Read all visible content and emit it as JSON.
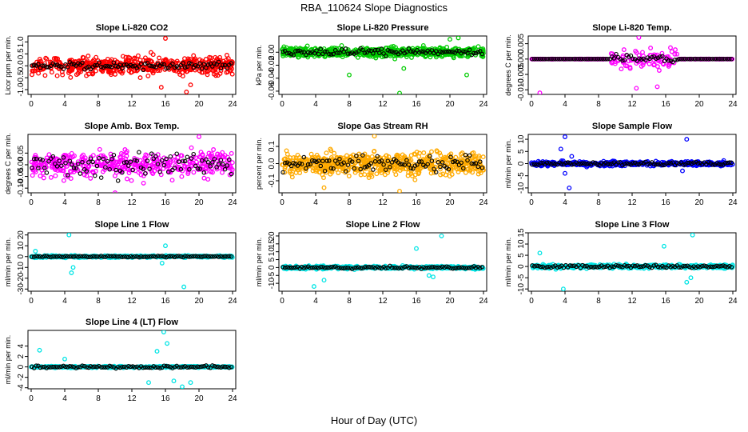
{
  "title": "RBA_110624  Slope Diagnostics",
  "xlabel": "Hour of Day (UTC)",
  "chart_data": [
    {
      "type": "scatter",
      "title": "Slope Li-820 CO2",
      "ylabel": "Licor ppm per min.",
      "xlim": [
        0,
        24
      ],
      "xticks": [
        0,
        4,
        8,
        12,
        16,
        20,
        24
      ],
      "ylim": [
        -1.2,
        1.25
      ],
      "yticks": [
        -1.0,
        -0.5,
        0.0,
        0.5,
        1.0
      ],
      "ytick_labels": [
        "-1.0",
        "-0.5",
        "0.0",
        "0.5",
        "1.0"
      ],
      "color": "#ff0000",
      "seed": 11,
      "spread": 0.32,
      "n": 520,
      "outliers": [
        [
          16,
          1.15
        ],
        [
          18.5,
          -1.1
        ],
        [
          19,
          -0.8
        ],
        [
          15.5,
          -0.9
        ],
        [
          13,
          -0.5
        ]
      ],
      "black_spread": 0.12
    },
    {
      "type": "scatter",
      "title": "Slope Li-820 Pressure",
      "ylabel": "kPa per min.",
      "xlim": [
        0,
        24
      ],
      "xticks": [
        0,
        4,
        8,
        12,
        16,
        20,
        24
      ],
      "ylim": [
        -0.065,
        0.025
      ],
      "yticks": [
        -0.06,
        -0.04,
        -0.02,
        0.0
      ],
      "ytick_labels": [
        "-0.06",
        "-0.04",
        "-0.02",
        "0.00"
      ],
      "color": "#00cc00",
      "seed": 23,
      "spread": 0.006,
      "n": 650,
      "outliers": [
        [
          14,
          -0.063
        ],
        [
          8,
          -0.035
        ],
        [
          22,
          -0.035
        ],
        [
          20,
          0.02
        ],
        [
          21,
          0.022
        ],
        [
          14.5,
          -0.025
        ]
      ],
      "black_spread": 0.004
    },
    {
      "type": "scatter",
      "title": "Slope Li-820 Temp.",
      "ylabel": "degrees C per min.",
      "xlim": [
        0,
        24
      ],
      "xticks": [
        0,
        4,
        8,
        12,
        16,
        20,
        24
      ],
      "ylim": [
        -0.0115,
        0.0075
      ],
      "yticks": [
        -0.01,
        -0.005,
        0.0,
        0.005
      ],
      "ytick_labels": [
        "-0.010",
        "-0.005",
        "0.000",
        "0.005"
      ],
      "color": "#ff00ff",
      "seed": 37,
      "spread": 0.0025,
      "n": 260,
      "outliers": [
        [
          1,
          -0.011
        ],
        [
          12.8,
          0.007
        ],
        [
          15,
          -0.009
        ],
        [
          12.5,
          -0.0095
        ]
      ],
      "black_spread": 0.001,
      "flat_ranges": [
        [
          0,
          9.5
        ],
        [
          17.5,
          24
        ]
      ]
    },
    {
      "type": "scatter",
      "title": "Slope Amb. Box Temp.",
      "ylabel": "degrees C per min.",
      "xlim": [
        0,
        24
      ],
      "xticks": [
        0,
        4,
        8,
        12,
        16,
        20,
        24
      ],
      "ylim": [
        -0.12,
        0.13
      ],
      "yticks": [
        -0.1,
        -0.05,
        0.0,
        0.05
      ],
      "ytick_labels": [
        "-0.10",
        "-0.05",
        "0.00",
        "0.05"
      ],
      "color": "#ff00ff",
      "seed": 41,
      "spread": 0.045,
      "n": 420,
      "outliers": [
        [
          10,
          -0.12
        ],
        [
          20,
          0.12
        ]
      ],
      "black_spread": 0.04
    },
    {
      "type": "scatter",
      "title": "Slope Gas Stream RH",
      "ylabel": "percent per min.",
      "xlim": [
        0,
        24
      ],
      "xticks": [
        0,
        4,
        8,
        12,
        16,
        20,
        24
      ],
      "ylim": [
        -0.17,
        0.17
      ],
      "yticks": [
        -0.1,
        0.0,
        0.1
      ],
      "ytick_labels": [
        "-0.1",
        "0.0",
        "0.1"
      ],
      "color": "#ffaa00",
      "seed": 53,
      "spread": 0.055,
      "n": 650,
      "outliers": [
        [
          11,
          0.16
        ],
        [
          5,
          -0.14
        ],
        [
          14,
          -0.16
        ]
      ],
      "black_spread": 0.04
    },
    {
      "type": "scatter",
      "title": "Slope Sample Flow",
      "ylabel": "ml/min per min.",
      "xlim": [
        0,
        24
      ],
      "xticks": [
        0,
        4,
        8,
        12,
        16,
        20,
        24
      ],
      "ylim": [
        -12,
        12
      ],
      "yticks": [
        -10,
        -5,
        0,
        5,
        10
      ],
      "ytick_labels": [
        "-10",
        "-5",
        "0",
        "5",
        "10"
      ],
      "color": "#0000ff",
      "seed": 67,
      "spread": 0.8,
      "n": 380,
      "outliers": [
        [
          4,
          11
        ],
        [
          4.5,
          -10
        ],
        [
          3.5,
          6
        ],
        [
          4,
          -4
        ],
        [
          18.5,
          10
        ],
        [
          18,
          -3
        ],
        [
          4.8,
          3
        ]
      ],
      "black_spread": 0.6
    },
    {
      "type": "scatter",
      "title": "Slope Line 1 Flow",
      "ylabel": "ml/min per min.",
      "xlim": [
        0,
        24
      ],
      "xticks": [
        0,
        4,
        8,
        12,
        16,
        20,
        24
      ],
      "ylim": [
        -32,
        22
      ],
      "yticks": [
        -30,
        -20,
        -10,
        0,
        10,
        20
      ],
      "ytick_labels": [
        "-30",
        "-20",
        "-10",
        "0",
        "10",
        "20"
      ],
      "color": "#00e5e5",
      "seed": 71,
      "spread": 0.8,
      "n": 380,
      "outliers": [
        [
          4.5,
          20
        ],
        [
          4.8,
          -15
        ],
        [
          5,
          -10
        ],
        [
          16,
          10
        ],
        [
          18.2,
          -28
        ],
        [
          15.6,
          -6
        ],
        [
          0.5,
          5
        ]
      ],
      "black_spread": 0.5
    },
    {
      "type": "scatter",
      "title": "Slope Line 2 Flow",
      "ylabel": "ml/min per min.",
      "xlim": [
        0,
        24
      ],
      "xticks": [
        0,
        4,
        8,
        12,
        16,
        20,
        24
      ],
      "ylim": [
        -15,
        22
      ],
      "yticks": [
        -10,
        -5,
        0,
        5,
        10,
        15,
        20
      ],
      "ytick_labels": [
        "-10",
        "-5",
        "0",
        "5",
        "10",
        "15",
        "20"
      ],
      "color": "#00e5e5",
      "seed": 83,
      "spread": 0.8,
      "n": 380,
      "outliers": [
        [
          19,
          20
        ],
        [
          16,
          12
        ],
        [
          3.8,
          -12
        ],
        [
          5,
          -8
        ],
        [
          17.5,
          -5
        ],
        [
          18,
          -6
        ]
      ],
      "black_spread": 0.6
    },
    {
      "type": "scatter",
      "title": "Slope Line 3 Flow",
      "ylabel": "ml/min per min.",
      "xlim": [
        0,
        24
      ],
      "xticks": [
        0,
        4,
        8,
        12,
        16,
        20,
        24
      ],
      "ylim": [
        -11,
        15
      ],
      "yticks": [
        -10,
        -5,
        0,
        5,
        10,
        15
      ],
      "ytick_labels": [
        "-10",
        "-5",
        "0",
        "5",
        "10",
        "15"
      ],
      "color": "#00e5e5",
      "seed": 97,
      "spread": 0.7,
      "n": 380,
      "outliers": [
        [
          19.2,
          14
        ],
        [
          15.8,
          9
        ],
        [
          1,
          6
        ],
        [
          3.8,
          -10
        ],
        [
          18.5,
          -7
        ],
        [
          19,
          -5
        ]
      ],
      "black_spread": 0.5
    },
    {
      "type": "scatter",
      "title": "Slope Line 4 (LT) Flow",
      "ylabel": "ml/min per min.",
      "xlim": [
        0,
        24
      ],
      "xticks": [
        0,
        4,
        8,
        12,
        16,
        20,
        24
      ],
      "ylim": [
        -4.2,
        7
      ],
      "yticks": [
        -4,
        -2,
        0,
        2,
        4
      ],
      "ytick_labels": [
        "-4",
        "-2",
        "0",
        "2",
        "4"
      ],
      "color": "#00e5e5",
      "seed": 101,
      "spread": 0.12,
      "n": 380,
      "outliers": [
        [
          15.8,
          6.7
        ],
        [
          16.2,
          4.5
        ],
        [
          15,
          3
        ],
        [
          1,
          3.2
        ],
        [
          14,
          -3
        ],
        [
          18,
          -3.8
        ],
        [
          17,
          -2.7
        ],
        [
          19,
          -3
        ],
        [
          4,
          1.5
        ]
      ],
      "black_spread": 0.2
    }
  ]
}
